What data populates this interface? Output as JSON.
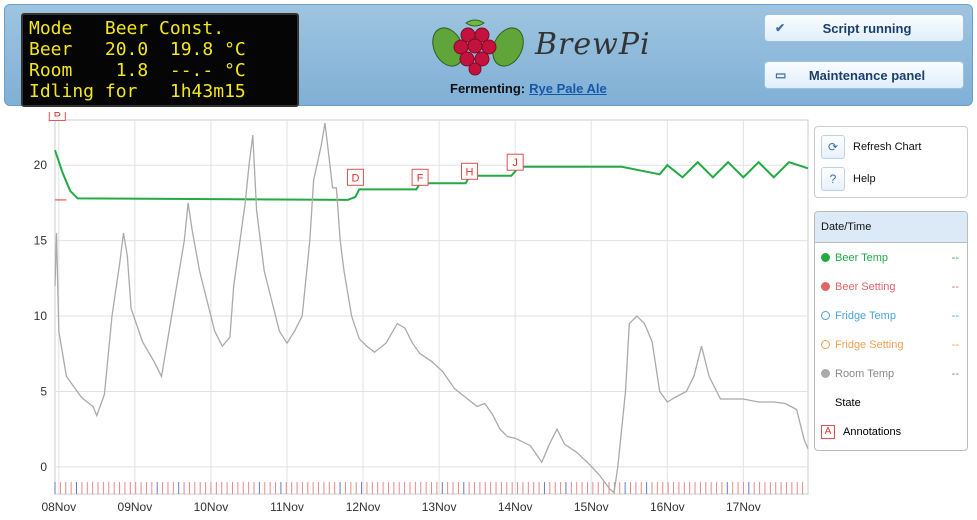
{
  "lcd": {
    "lines": [
      "Mode   Beer Const.",
      "Beer   20.0  19.8 °C",
      "Room    1.8  --.- °C",
      "Idling for   1h43m15"
    ]
  },
  "brand": {
    "name": "BrewPi"
  },
  "fermenting": {
    "label": "Fermenting:",
    "beer_name": "Rye Pale Ale"
  },
  "buttons": {
    "script_status": "Script running",
    "maintenance": "Maintenance panel"
  },
  "chart_tools": {
    "refresh": "Refresh Chart",
    "help": "Help"
  },
  "legend": {
    "header": "Date/Time",
    "items": [
      {
        "label": "Beer Temp",
        "value": "--",
        "color": "#22aa44",
        "filled": true
      },
      {
        "label": "Beer Setting",
        "value": "--",
        "color": "#e06666",
        "filled": true
      },
      {
        "label": "Fridge Temp",
        "value": "--",
        "color": "#4aa3df",
        "filled": false
      },
      {
        "label": "Fridge Setting",
        "value": "--",
        "color": "#f0a050",
        "filled": false
      },
      {
        "label": "Room Temp",
        "value": "--",
        "color": "#aaaaaa",
        "filled": true
      }
    ],
    "state": "State",
    "annotations": "Annotations",
    "annotations_icon": "A"
  },
  "chart_data": {
    "type": "line",
    "x_tick_labels": [
      "08Nov",
      "09Nov",
      "10Nov",
      "11Nov",
      "12Nov",
      "13Nov",
      "14Nov",
      "15Nov",
      "16Nov",
      "17Nov"
    ],
    "y_tick_labels": [
      "0",
      "5",
      "10",
      "15",
      "20"
    ],
    "ylim": [
      -1.8,
      23
    ],
    "x_days_range": [
      7.95,
      17.85
    ],
    "annotations": [
      {
        "label": "B",
        "x": 7.98,
        "y": 23.5
      },
      {
        "label": "D",
        "x": 11.9,
        "y": 19.2
      },
      {
        "label": "F",
        "x": 12.75,
        "y": 19.2
      },
      {
        "label": "H",
        "x": 13.4,
        "y": 19.6
      },
      {
        "label": "J",
        "x": 14.0,
        "y": 20.2
      }
    ],
    "series": [
      {
        "name": "Beer Setting",
        "color": "#e06666",
        "points": [
          [
            7.95,
            17.7
          ],
          [
            8.1,
            17.7
          ]
        ]
      },
      {
        "name": "Beer Temp",
        "color": "#22aa44",
        "points": [
          [
            7.95,
            21.0
          ],
          [
            8.05,
            19.5
          ],
          [
            8.15,
            18.3
          ],
          [
            8.25,
            17.8
          ],
          [
            11.8,
            17.7
          ],
          [
            11.9,
            17.9
          ],
          [
            11.95,
            18.4
          ],
          [
            12.7,
            18.4
          ],
          [
            12.75,
            18.8
          ],
          [
            13.35,
            18.8
          ],
          [
            13.4,
            19.3
          ],
          [
            13.95,
            19.3
          ],
          [
            14.05,
            19.9
          ],
          [
            15.4,
            19.9
          ],
          [
            15.6,
            19.7
          ],
          [
            15.9,
            19.4
          ],
          [
            16.0,
            20.0
          ],
          [
            16.2,
            19.2
          ],
          [
            16.4,
            20.2
          ],
          [
            16.6,
            19.2
          ],
          [
            16.8,
            20.2
          ],
          [
            17.0,
            19.2
          ],
          [
            17.2,
            20.2
          ],
          [
            17.4,
            19.2
          ],
          [
            17.6,
            20.2
          ],
          [
            17.85,
            19.8
          ]
        ]
      },
      {
        "name": "Room Temp",
        "color": "#aaaaaa",
        "points": [
          [
            7.95,
            12.0
          ],
          [
            7.97,
            15.5
          ],
          [
            8.0,
            9.0
          ],
          [
            8.1,
            6.0
          ],
          [
            8.3,
            4.6
          ],
          [
            8.45,
            4.0
          ],
          [
            8.5,
            3.4
          ],
          [
            8.6,
            4.8
          ],
          [
            8.7,
            10.0
          ],
          [
            8.8,
            13.5
          ],
          [
            8.85,
            15.5
          ],
          [
            8.9,
            14.0
          ],
          [
            8.95,
            10.5
          ],
          [
            9.1,
            8.3
          ],
          [
            9.25,
            7.0
          ],
          [
            9.35,
            6.0
          ],
          [
            9.45,
            9.0
          ],
          [
            9.55,
            12.0
          ],
          [
            9.65,
            15.0
          ],
          [
            9.7,
            17.5
          ],
          [
            9.75,
            15.8
          ],
          [
            9.85,
            13.0
          ],
          [
            9.95,
            11.0
          ],
          [
            10.05,
            9.0
          ],
          [
            10.15,
            8.0
          ],
          [
            10.25,
            8.6
          ],
          [
            10.3,
            12.0
          ],
          [
            10.45,
            17.5
          ],
          [
            10.5,
            20.0
          ],
          [
            10.55,
            22.0
          ],
          [
            10.6,
            17.0
          ],
          [
            10.7,
            13.0
          ],
          [
            10.8,
            11.0
          ],
          [
            10.9,
            9.0
          ],
          [
            11.0,
            8.2
          ],
          [
            11.1,
            9.0
          ],
          [
            11.2,
            10.0
          ],
          [
            11.3,
            15.0
          ],
          [
            11.35,
            19.0
          ],
          [
            11.45,
            21.3
          ],
          [
            11.5,
            22.8
          ],
          [
            11.6,
            18.5
          ],
          [
            11.65,
            18.5
          ],
          [
            11.7,
            15.0
          ],
          [
            11.75,
            13.0
          ],
          [
            11.85,
            10.0
          ],
          [
            11.95,
            8.5
          ],
          [
            12.05,
            8.0
          ],
          [
            12.15,
            7.6
          ],
          [
            12.3,
            8.2
          ],
          [
            12.45,
            9.5
          ],
          [
            12.55,
            9.2
          ],
          [
            12.65,
            8.2
          ],
          [
            12.75,
            7.5
          ],
          [
            12.9,
            7.0
          ],
          [
            13.05,
            6.3
          ],
          [
            13.2,
            5.2
          ],
          [
            13.35,
            4.6
          ],
          [
            13.5,
            4.0
          ],
          [
            13.6,
            4.2
          ],
          [
            13.7,
            3.5
          ],
          [
            13.8,
            2.5
          ],
          [
            13.9,
            2.0
          ],
          [
            14.0,
            1.9
          ],
          [
            14.2,
            1.4
          ],
          [
            14.35,
            0.3
          ],
          [
            14.45,
            1.5
          ],
          [
            14.55,
            2.5
          ],
          [
            14.65,
            1.5
          ],
          [
            14.8,
            1.0
          ],
          [
            14.95,
            0.3
          ],
          [
            15.1,
            -0.5
          ],
          [
            15.25,
            -1.5
          ],
          [
            15.3,
            -1.7
          ],
          [
            15.35,
            0.0
          ],
          [
            15.45,
            5.0
          ],
          [
            15.5,
            9.5
          ],
          [
            15.6,
            10.0
          ],
          [
            15.7,
            9.5
          ],
          [
            15.8,
            8.3
          ],
          [
            15.9,
            5.0
          ],
          [
            16.0,
            4.3
          ],
          [
            16.1,
            4.6
          ],
          [
            16.25,
            5.0
          ],
          [
            16.35,
            6.0
          ],
          [
            16.45,
            8.0
          ],
          [
            16.55,
            6.0
          ],
          [
            16.7,
            4.5
          ],
          [
            16.85,
            4.5
          ],
          [
            17.0,
            4.5
          ],
          [
            17.2,
            4.3
          ],
          [
            17.4,
            4.3
          ],
          [
            17.55,
            4.2
          ],
          [
            17.7,
            3.8
          ],
          [
            17.8,
            1.8
          ],
          [
            17.85,
            1.2
          ]
        ]
      }
    ]
  }
}
